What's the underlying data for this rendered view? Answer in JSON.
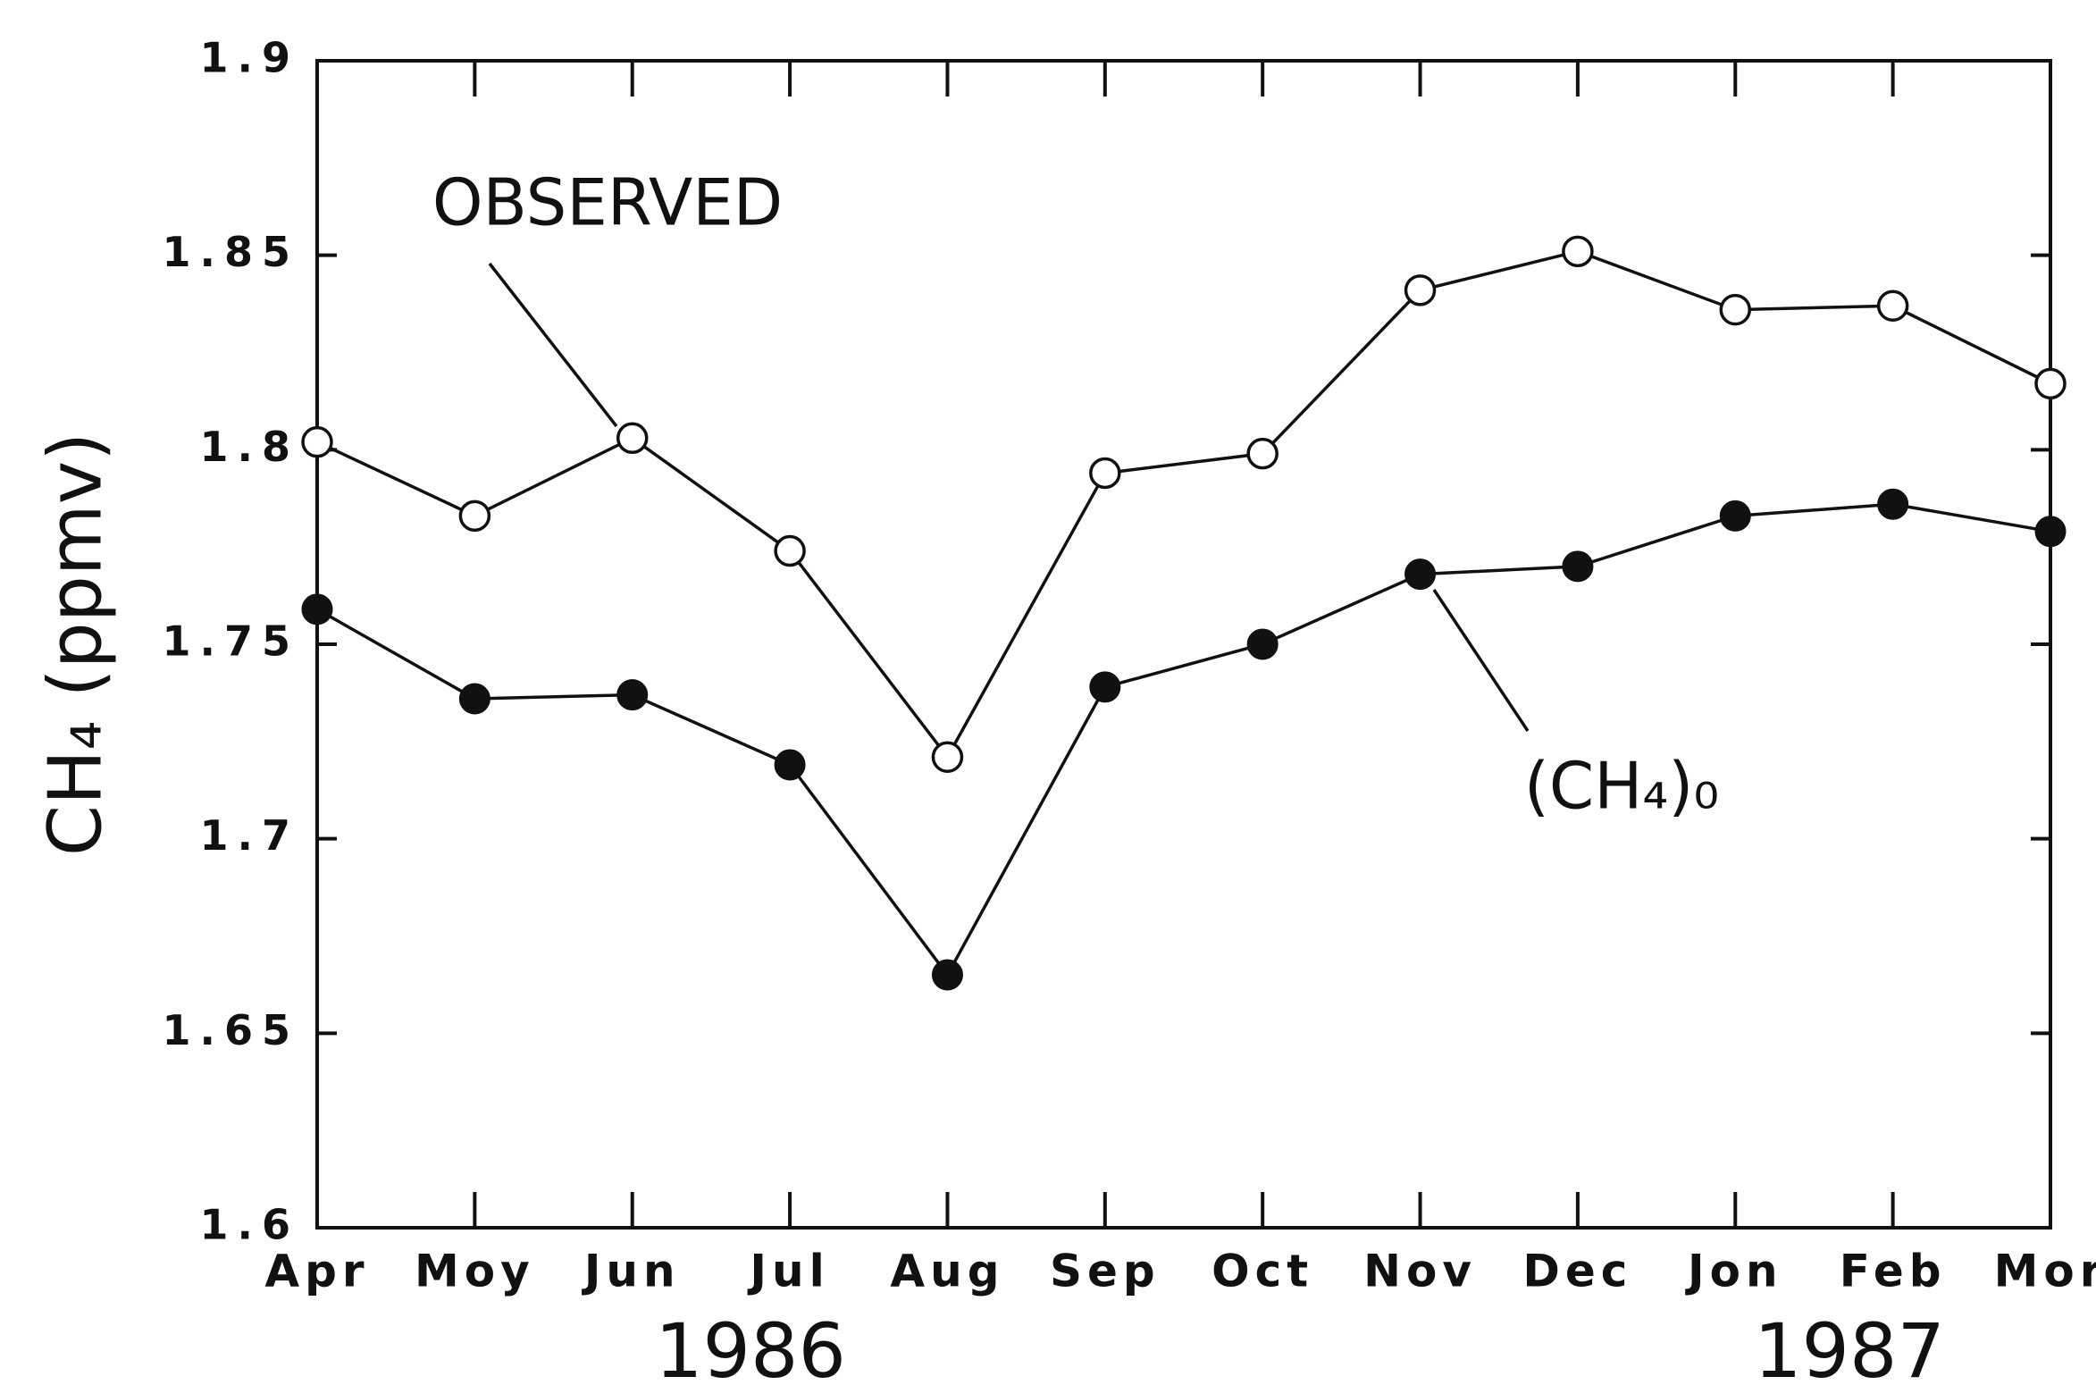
{
  "chart_data": {
    "type": "line",
    "y_label": "CH₄ (ppmv)",
    "categories": [
      "Apr",
      "Moy",
      "Jun",
      "Jul",
      "Aug",
      "Sep",
      "Oct",
      "Nov",
      "Dec",
      "Jon",
      "Feb",
      "Mor"
    ],
    "annotations": [
      "OBSERVED",
      "(CH₄)₀",
      "1986",
      "1987"
    ],
    "series": [
      {
        "name": "OBSERVED",
        "color": "#111111",
        "marker": "open",
        "values": [
          1.802,
          1.783,
          1.803,
          1.774,
          1.721,
          1.794,
          1.799,
          1.841,
          1.851,
          1.836,
          1.837,
          1.817
        ]
      },
      {
        "name": "(CH₄)₀",
        "color": "#111111",
        "marker": "filled",
        "values": [
          1.759,
          1.736,
          1.737,
          1.719,
          1.665,
          1.739,
          1.75,
          1.768,
          1.77,
          1.783,
          1.786,
          1.779
        ]
      }
    ],
    "ylim": [
      1.6,
      1.9
    ],
    "yticks": [
      1.6,
      1.65,
      1.7,
      1.75,
      1.8,
      1.85,
      1.9
    ],
    "grid": false
  }
}
